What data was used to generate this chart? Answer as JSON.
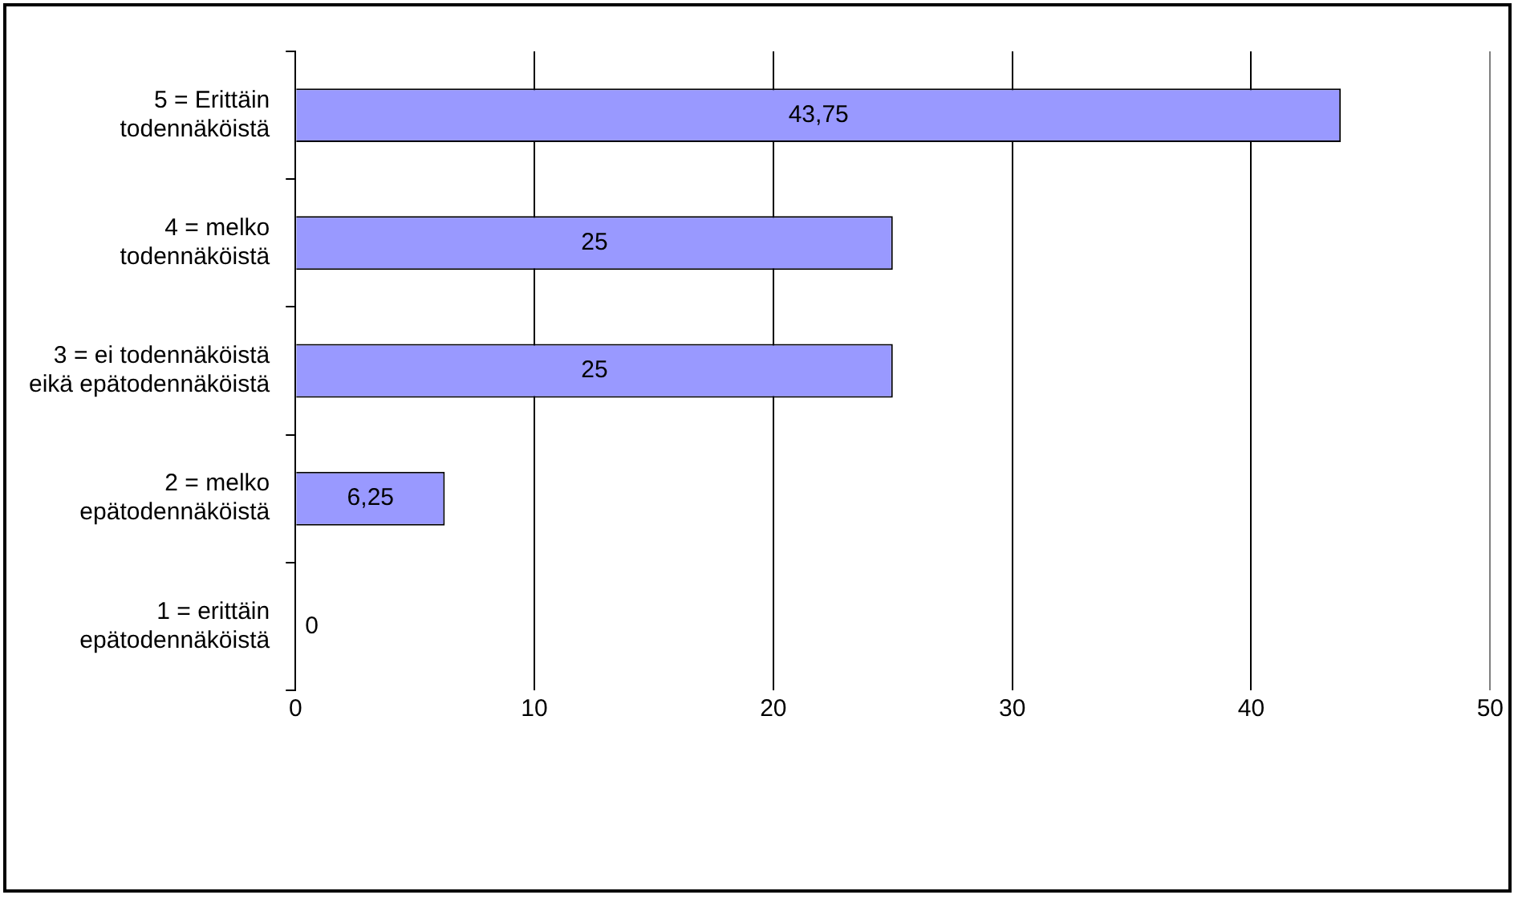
{
  "chart_data": {
    "type": "bar",
    "orientation": "horizontal",
    "categories": [
      "5 = Erittäin\ntodennäköistä",
      "4 = melko\ntodennäköistä",
      "3 = ei todennäköistä\neikä epätodennäköistä",
      "2 = melko\nepätodennäköistä",
      "1 = erittäin\nepätodennäköistä"
    ],
    "values": [
      43.75,
      25,
      25,
      6.25,
      0
    ],
    "value_labels": [
      "43,75",
      "25",
      "25",
      "6,25",
      "0"
    ],
    "color": "#9999ff",
    "xlim": [
      0,
      50
    ],
    "xticks": [
      0,
      10,
      20,
      30,
      40,
      50
    ],
    "grid": "x",
    "legend": false
  }
}
